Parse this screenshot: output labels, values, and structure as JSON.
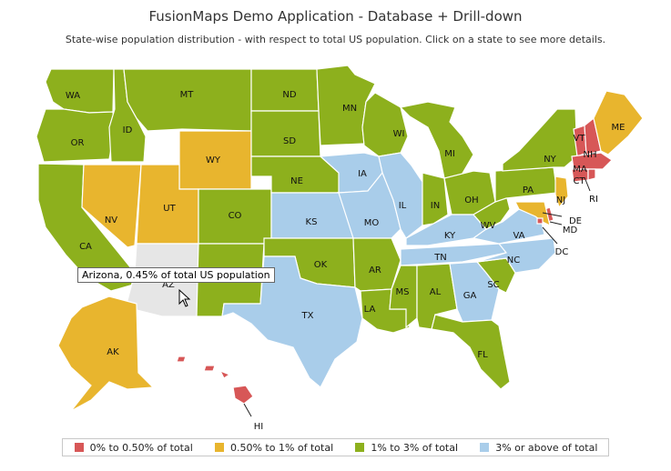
{
  "title": "FusionMaps Demo Application - Database + Drill-down",
  "subtitle": "State-wise population distribution - with respect to total US population. Click on a state to see more details.",
  "tooltip": "Arizona, 0.45% of total US population",
  "colors": {
    "red": "#d75757",
    "orange": "#e8b52e",
    "green": "#8db01d",
    "blue": "#a9cdea",
    "gray": "#e6e6e6"
  },
  "legend": [
    {
      "label": "0% to 0.50% of total",
      "color": "#d75757"
    },
    {
      "label": "0.50% to 1% of total",
      "color": "#e8b52e"
    },
    {
      "label": "1% to 3% of total",
      "color": "#8db01d"
    },
    {
      "label": "3% or above of total",
      "color": "#a9cdea"
    }
  ],
  "states": {
    "WA": {
      "name": "Washington",
      "category": "green"
    },
    "OR": {
      "name": "Oregon",
      "category": "green"
    },
    "CA": {
      "name": "California",
      "category": "green"
    },
    "ID": {
      "name": "Idaho",
      "category": "green"
    },
    "NV": {
      "name": "Nevada",
      "category": "orange"
    },
    "MT": {
      "name": "Montana",
      "category": "green"
    },
    "WY": {
      "name": "Wyoming",
      "category": "orange"
    },
    "UT": {
      "name": "Utah",
      "category": "orange"
    },
    "CO": {
      "name": "Colorado",
      "category": "green"
    },
    "AZ": {
      "name": "Arizona",
      "category": "gray"
    },
    "NM": {
      "name": "New Mexico",
      "category": "green"
    },
    "ND": {
      "name": "North Dakota",
      "category": "green"
    },
    "SD": {
      "name": "South Dakota",
      "category": "green"
    },
    "NE": {
      "name": "Nebraska",
      "category": "green"
    },
    "KS": {
      "name": "Kansas",
      "category": "blue"
    },
    "OK": {
      "name": "Oklahoma",
      "category": "green"
    },
    "TX": {
      "name": "Texas",
      "category": "blue"
    },
    "MN": {
      "name": "Minnesota",
      "category": "green"
    },
    "IA": {
      "name": "Iowa",
      "category": "blue"
    },
    "MO": {
      "name": "Missouri",
      "category": "blue"
    },
    "AR": {
      "name": "Arkansas",
      "category": "green"
    },
    "LA": {
      "name": "Louisiana",
      "category": "green"
    },
    "WI": {
      "name": "Wisconsin",
      "category": "green"
    },
    "IL": {
      "name": "Illinois",
      "category": "blue"
    },
    "MI": {
      "name": "Michigan",
      "category": "green"
    },
    "IN": {
      "name": "Indiana",
      "category": "green"
    },
    "OH": {
      "name": "Ohio",
      "category": "green"
    },
    "KY": {
      "name": "Kentucky",
      "category": "blue"
    },
    "TN": {
      "name": "Tennessee",
      "category": "blue"
    },
    "MS": {
      "name": "Mississippi",
      "category": "green"
    },
    "AL": {
      "name": "Alabama",
      "category": "green"
    },
    "GA": {
      "name": "Georgia",
      "category": "blue"
    },
    "FL": {
      "name": "Florida",
      "category": "green"
    },
    "SC": {
      "name": "South Carolina",
      "category": "green"
    },
    "NC": {
      "name": "North Carolina",
      "category": "blue"
    },
    "VA": {
      "name": "Virginia",
      "category": "blue"
    },
    "WV": {
      "name": "West Virginia",
      "category": "green"
    },
    "PA": {
      "name": "Pennsylvania",
      "category": "green"
    },
    "NY": {
      "name": "New York",
      "category": "green"
    },
    "NJ": {
      "name": "New Jersey",
      "category": "orange"
    },
    "DE": {
      "name": "Delaware",
      "category": "red"
    },
    "MD": {
      "name": "Maryland",
      "category": "orange"
    },
    "DC": {
      "name": "District of Columbia",
      "category": "red"
    },
    "VT": {
      "name": "Vermont",
      "category": "red"
    },
    "NH": {
      "name": "New Hampshire",
      "category": "red"
    },
    "MA": {
      "name": "Massachusetts",
      "category": "red"
    },
    "CT": {
      "name": "Connecticut",
      "category": "red"
    },
    "RI": {
      "name": "Rhode Island",
      "category": "red"
    },
    "ME": {
      "name": "Maine",
      "category": "orange"
    },
    "AK": {
      "name": "Alaska",
      "category": "orange"
    },
    "HI": {
      "name": "Hawaii",
      "category": "red"
    }
  }
}
